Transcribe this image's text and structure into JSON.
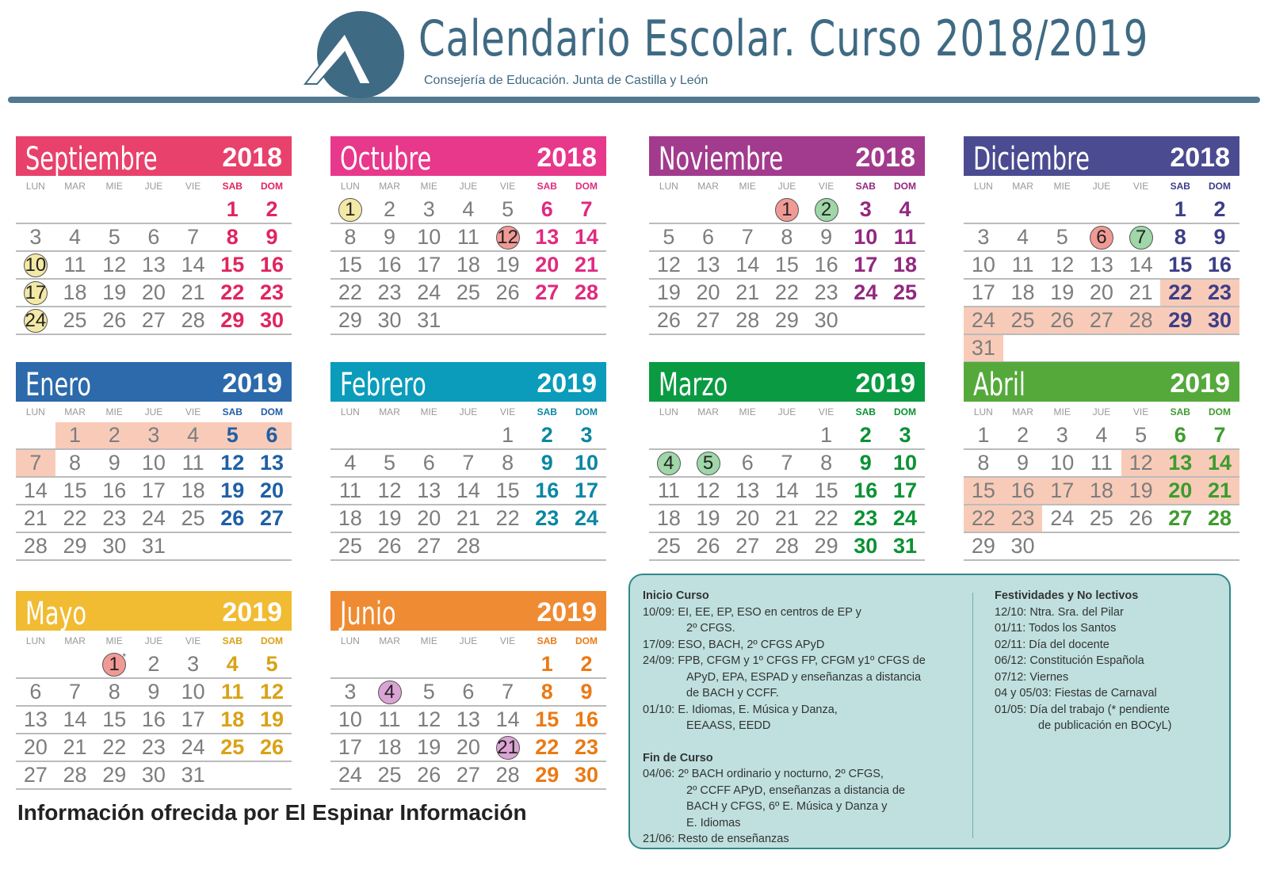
{
  "header": {
    "title": "Calendario Escolar. Curso 2018/2019",
    "subtitle": "Consejería de Educación. Junta de Castilla y León",
    "brand_color": "#3f6a83"
  },
  "weekdays": [
    "LUN",
    "MAR",
    "MIE",
    "JUE",
    "VIE",
    "SAB",
    "DOM"
  ],
  "highlight_colors": {
    "yellow": "#f3e9a6",
    "red": "#f19a95",
    "green": "#9fd7a8",
    "purple": "#dba4d4",
    "shade": "#f8cbb9"
  },
  "months": [
    {
      "name": "Septiembre",
      "year": "2018",
      "color": "#e8416b",
      "weekend": "#e0245e",
      "start": 5,
      "days": 30,
      "circles": {
        "10": "yellow",
        "17": "yellow",
        "24": "yellow"
      },
      "shaded": []
    },
    {
      "name": "Octubre",
      "year": "2018",
      "color": "#e8388c",
      "weekend": "#e02a80",
      "start": 0,
      "days": 31,
      "circles": {
        "1": "yellow",
        "12": "red"
      },
      "shaded": []
    },
    {
      "name": "Noviembre",
      "year": "2018",
      "color": "#a23b8d",
      "weekend": "#93287f",
      "start": 3,
      "days": 30,
      "circles": {
        "1": "red",
        "2": "green"
      },
      "shaded": []
    },
    {
      "name": "Diciembre",
      "year": "2018",
      "color": "#4b4b91",
      "weekend": "#3d3d88",
      "start": 5,
      "days": 31,
      "circles": {
        "6": "red",
        "7": "green"
      },
      "shaded": [
        22,
        23,
        24,
        25,
        26,
        27,
        28,
        29,
        30,
        31
      ]
    },
    {
      "name": "Enero",
      "year": "2019",
      "color": "#2c6aab",
      "weekend": "#1f5fa5",
      "start": 1,
      "days": 31,
      "circles": {},
      "shaded": [
        1,
        2,
        3,
        4,
        5,
        6,
        7
      ]
    },
    {
      "name": "Febrero",
      "year": "2019",
      "color": "#0a9cba",
      "weekend": "#0a87a3",
      "start": 4,
      "days": 28,
      "circles": {},
      "shaded": []
    },
    {
      "name": "Marzo",
      "year": "2019",
      "color": "#0a9b42",
      "weekend": "#0a9233",
      "start": 4,
      "days": 31,
      "circles": {
        "4": "green",
        "5": "green"
      },
      "shaded": []
    },
    {
      "name": "Abril",
      "year": "2019",
      "color": "#55a93b",
      "weekend": "#3d9c2d",
      "start": 0,
      "days": 30,
      "circles": {},
      "shaded": [
        12,
        13,
        14,
        15,
        16,
        17,
        18,
        19,
        20,
        21,
        22,
        23
      ]
    },
    {
      "name": "Mayo",
      "year": "2019",
      "color": "#f1bb32",
      "weekend": "#d9a216",
      "start": 2,
      "days": 31,
      "circles": {
        "1": "red"
      },
      "asterisk": 1,
      "shaded": []
    },
    {
      "name": "Junio",
      "year": "2019",
      "color": "#ef8b32",
      "weekend": "#ea7a16",
      "start": 5,
      "days": 30,
      "circles": {
        "4": "purple",
        "21": "purple"
      },
      "shaded": []
    }
  ],
  "info": {
    "inicio_title": "Inicio Curso",
    "inicio": [
      "10/09: EI, EE, EP, ESO en centros de EP y",
      "2º CFGS.",
      "17/09: ESO, BACH, 2º CFGS APyD",
      "24/09: FPB, CFGM y 1º CFGS FP, CFGM y1º CFGS de",
      "APyD, EPA, ESPAD y enseñanzas a distancia",
      "de BACH y CCFF.",
      "01/10: E. Idiomas, E. Música y Danza,",
      "EEAASS, EEDD"
    ],
    "fin_title": "Fin de Curso",
    "fin": [
      "04/06: 2º BACH ordinario y nocturno, 2º CFGS,",
      "2º CCFF APyD, enseñanzas a distancia de",
      "BACH y CFGS, 6º E. Música y Danza y",
      "E. Idiomas",
      "21/06: Resto de enseñanzas"
    ],
    "fest_title": "Festividades y No lectivos",
    "fest": [
      "12/10: Ntra. Sra. del Pilar",
      "01/11: Todos los Santos",
      "02/11: Día del docente",
      "06/12: Constitución Española",
      "07/12: Viernes",
      "04 y 05/03: Fiestas de Carnaval",
      "01/05: Día del trabajo (* pendiente",
      "de publicación en BOCyL)"
    ]
  },
  "footer": "Información ofrecida por El Espinar Información"
}
